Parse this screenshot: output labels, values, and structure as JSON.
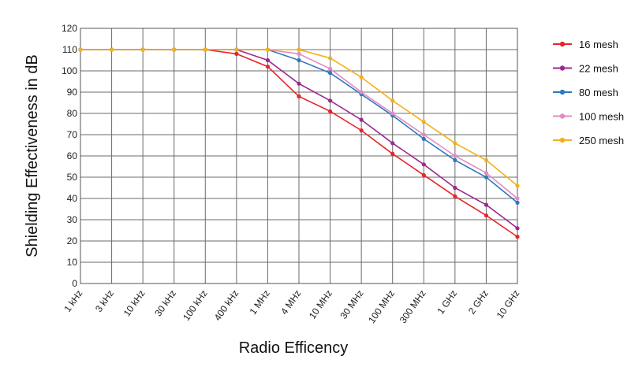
{
  "chart_data": {
    "type": "line",
    "title": "",
    "xlabel": "Radio Efficency",
    "ylabel": "Shielding Effectiveness in dB",
    "categories": [
      "1 kHz",
      "3 kHz",
      "10 kHz",
      "30 kHz",
      "100 kHz",
      "400 kHz",
      "1 MHz",
      "4 MHz",
      "10 MHz",
      "30 MHz",
      "100 MHz",
      "300 MHz",
      "1 GHz",
      "2 GHz",
      "10 GHz"
    ],
    "ylim": [
      0,
      120
    ],
    "yticks": [
      "0",
      "10",
      "20",
      "30",
      "40",
      "50",
      "60",
      "70",
      "80",
      "90",
      "100",
      "110",
      "120"
    ],
    "grid": true,
    "legend_position": "right",
    "series": [
      {
        "name": "16 mesh",
        "color": "#e8242a",
        "values": [
          110,
          110,
          110,
          110,
          110,
          108,
          102,
          88,
          81,
          72,
          61,
          51,
          41,
          32,
          22
        ]
      },
      {
        "name": "22 mesh",
        "color": "#9b2a8e",
        "values": [
          110,
          110,
          110,
          110,
          110,
          110,
          105,
          94,
          86,
          77,
          66,
          56,
          45,
          37,
          26
        ]
      },
      {
        "name": "80 mesh",
        "color": "#2f78be",
        "values": [
          110,
          110,
          110,
          110,
          110,
          110,
          110,
          105,
          99,
          89,
          79,
          68,
          58,
          50,
          38
        ]
      },
      {
        "name": "100 mesh",
        "color": "#e08cc3",
        "values": [
          110,
          110,
          110,
          110,
          110,
          110,
          110,
          108,
          101,
          90,
          80,
          70,
          60,
          52,
          40
        ]
      },
      {
        "name": "250 mesh",
        "color": "#f2b01e",
        "values": [
          110,
          110,
          110,
          110,
          110,
          110,
          110,
          110,
          106,
          97,
          86,
          76,
          66,
          58,
          46
        ]
      }
    ]
  }
}
